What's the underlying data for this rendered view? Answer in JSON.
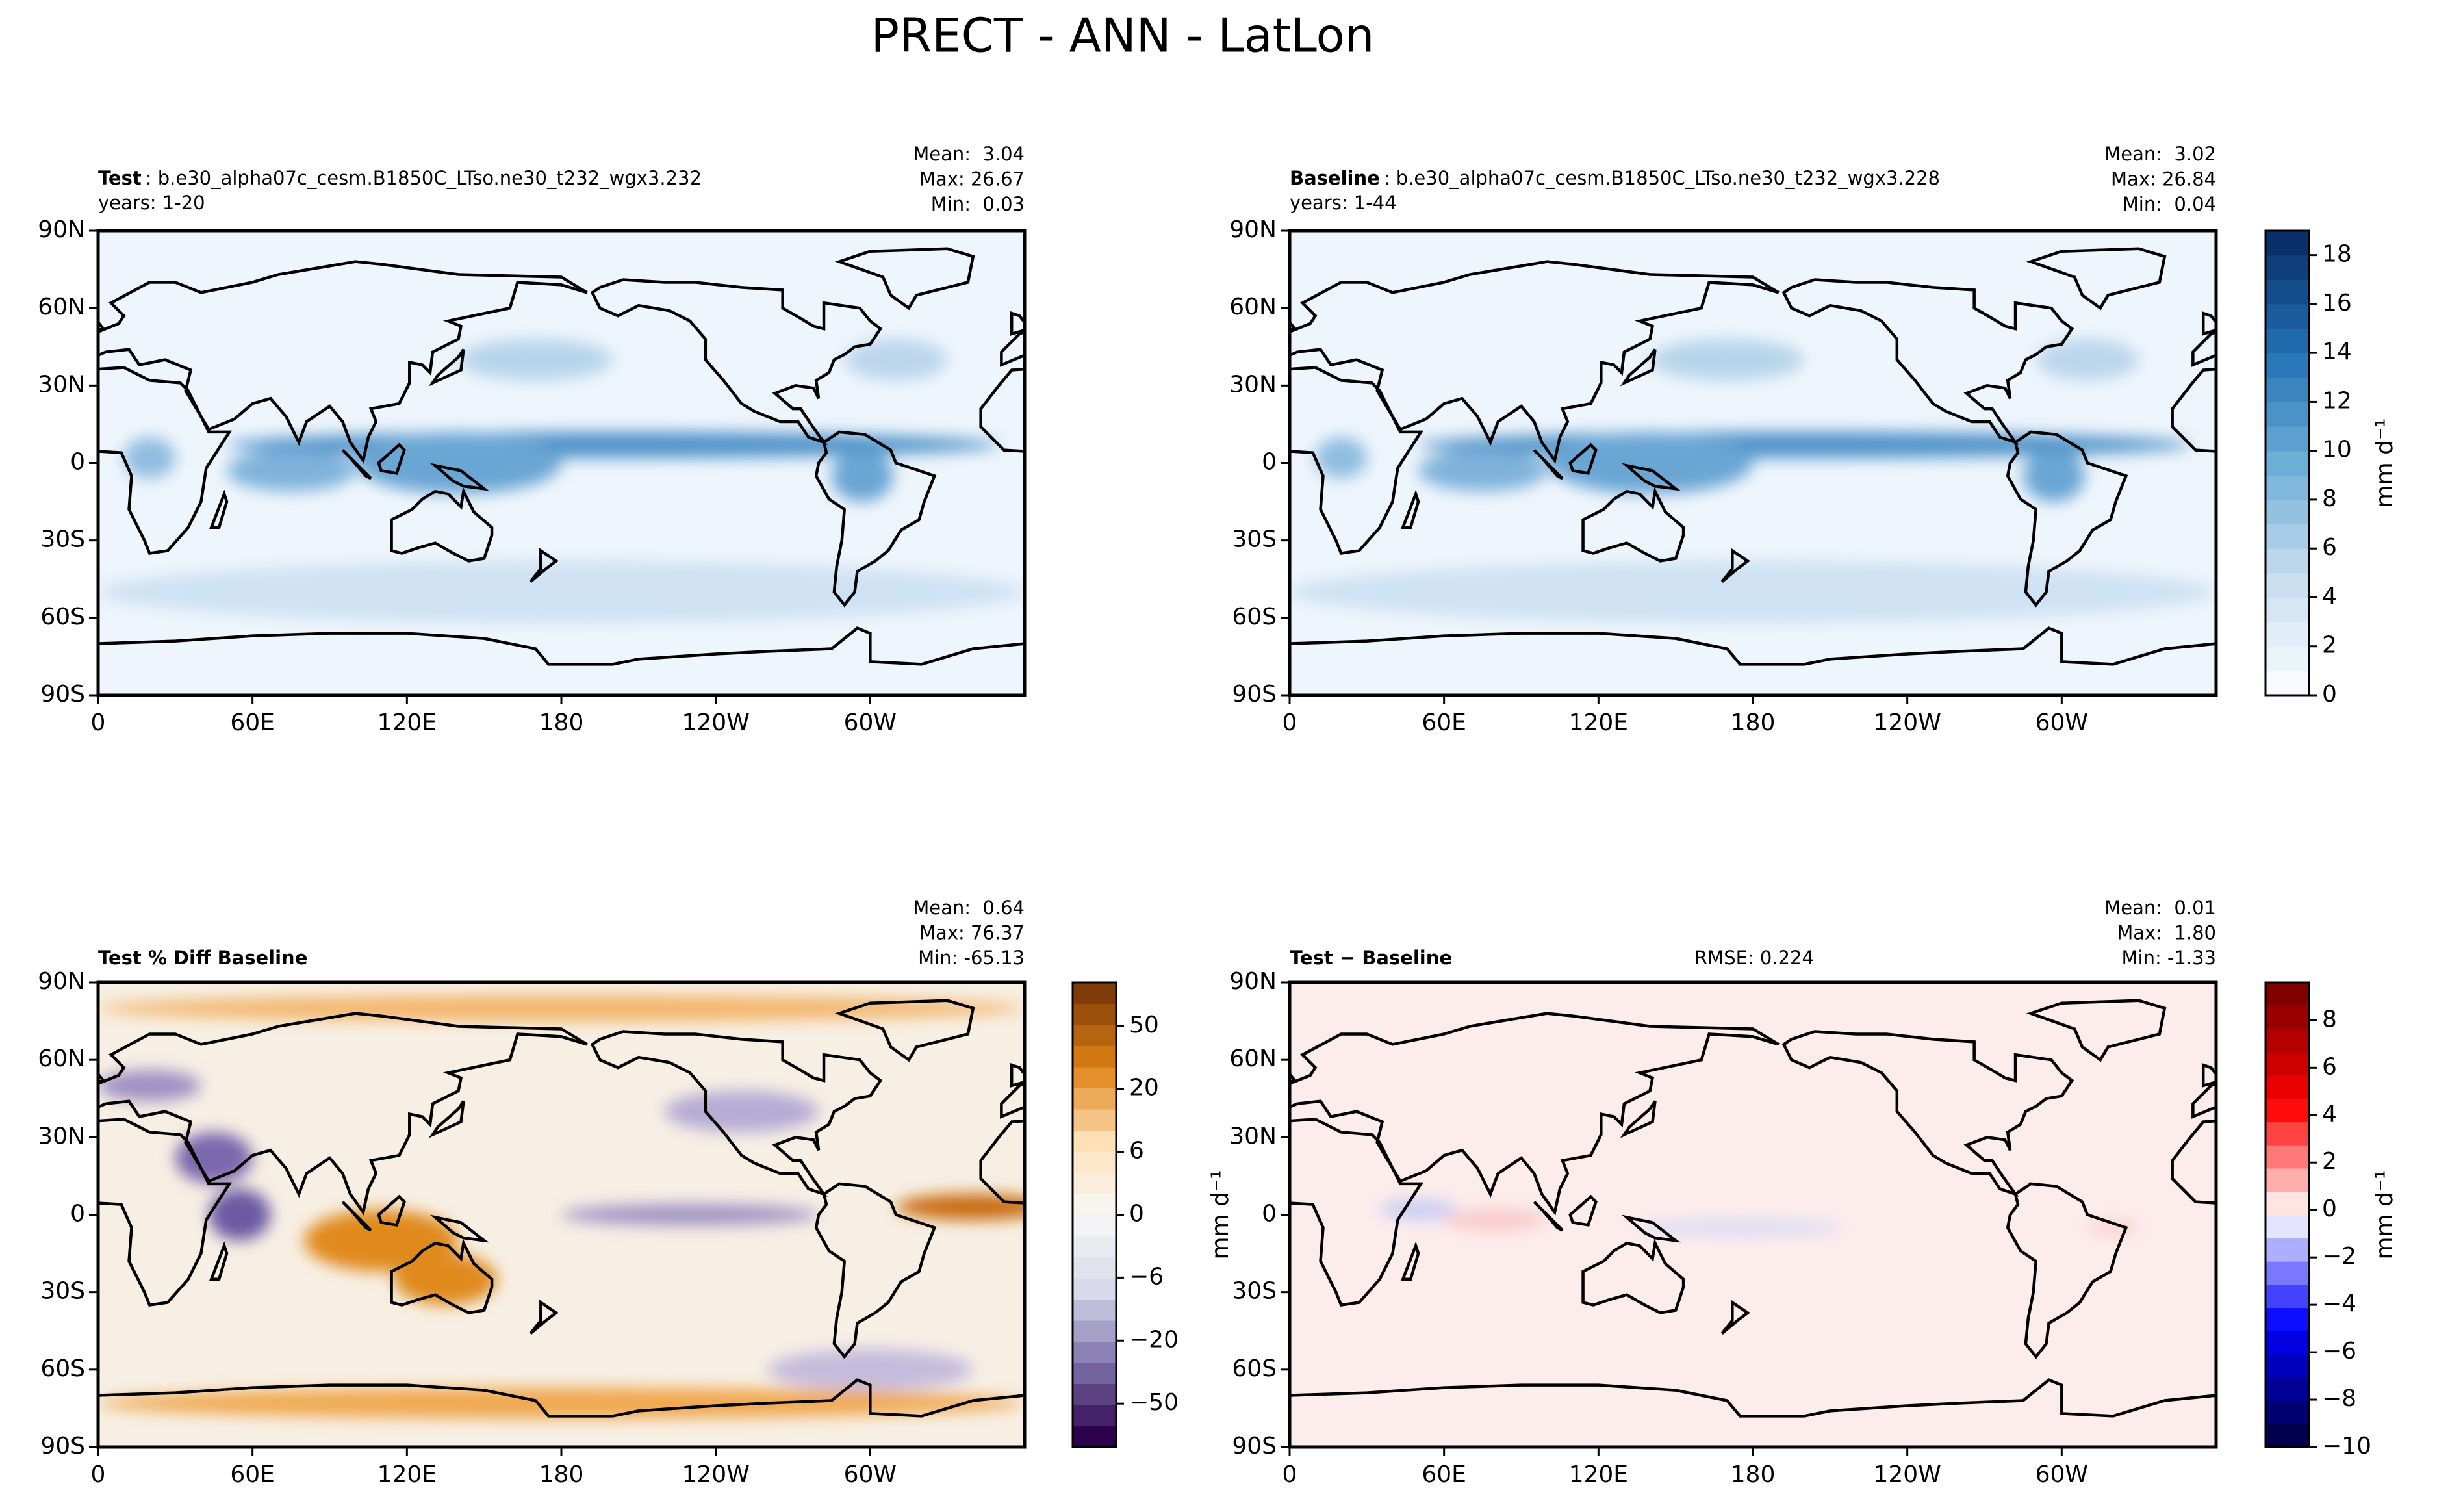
{
  "title": "PRECT - ANN - LatLon",
  "chart_data": [
    {
      "type": "map",
      "title_bold": "Test",
      "title": ": b.e30_alpha07c_cesm.B1850C_LTso.ne30_t232_wgx3.232",
      "subtitle": "years: 1-20",
      "stats": [
        "Mean:  3.04",
        "Max: 26.67",
        "Min:  0.03"
      ],
      "field": "precip",
      "xlim": [
        0,
        360
      ],
      "ylim": [
        -90,
        90
      ],
      "xticks": [
        0,
        {
          "value": 60,
          "label": "60E"
        },
        {
          "value": 120,
          "label": "120E"
        },
        180,
        {
          "value": 240,
          "label": "120W"
        },
        {
          "value": 300,
          "label": "60W"
        }
      ],
      "yticks": [
        {
          "value": 90,
          "label": "90N"
        },
        {
          "value": 60,
          "label": "60N"
        },
        {
          "value": 30,
          "label": "30N"
        },
        0,
        {
          "value": -30,
          "label": "30S"
        },
        {
          "value": -60,
          "label": "60S"
        },
        {
          "value": -90,
          "label": "90S"
        }
      ]
    },
    {
      "type": "map",
      "title_bold": "Baseline",
      "title": ": b.e30_alpha07c_cesm.B1850C_LTso.ne30_t232_wgx3.228",
      "subtitle": "years: 1-44",
      "stats": [
        "Mean:  3.02",
        "Max: 26.84",
        "Min:  0.04"
      ],
      "field": "precip",
      "xlim": [
        0,
        360
      ],
      "ylim": [
        -90,
        90
      ],
      "xticks": [
        0,
        {
          "value": 60,
          "label": "60E"
        },
        {
          "value": 120,
          "label": "120E"
        },
        180,
        {
          "value": 240,
          "label": "120W"
        },
        {
          "value": 300,
          "label": "60W"
        }
      ],
      "yticks": [
        {
          "value": 90,
          "label": "90N"
        },
        {
          "value": 60,
          "label": "60N"
        },
        {
          "value": 30,
          "label": "30N"
        },
        0,
        {
          "value": -30,
          "label": "30S"
        },
        {
          "value": -60,
          "label": "60S"
        },
        {
          "value": -90,
          "label": "90S"
        }
      ],
      "colorbar": {
        "label": "mm d⁻¹",
        "lim": [
          0,
          19
        ],
        "ticks": [
          0,
          2,
          4,
          6,
          8,
          10,
          12,
          14,
          16,
          18
        ],
        "bands": 19,
        "colors": [
          "#f7fbff",
          "#c6dbef",
          "#6baed6",
          "#2171b5",
          "#08306b"
        ]
      }
    },
    {
      "type": "map",
      "title_bold": "Test % Diff Baseline",
      "stats": [
        "Mean:  0.64",
        "Max: 76.37",
        "Min: -65.13"
      ],
      "field": "pctdiff",
      "xlim": [
        0,
        360
      ],
      "ylim": [
        -90,
        90
      ],
      "xticks": [
        0,
        {
          "value": 60,
          "label": "60E"
        },
        {
          "value": 120,
          "label": "120E"
        },
        180,
        {
          "value": 240,
          "label": "120W"
        },
        {
          "value": 300,
          "label": "60W"
        }
      ],
      "yticks": [
        {
          "value": 90,
          "label": "90N"
        },
        {
          "value": 60,
          "label": "60N"
        },
        {
          "value": 30,
          "label": "30N"
        },
        0,
        {
          "value": -30,
          "label": "30S"
        },
        {
          "value": -60,
          "label": "60S"
        },
        {
          "value": -90,
          "label": "90S"
        }
      ],
      "colorbar": {
        "label": "mm d⁻¹",
        "ticks": [
          {
            "value": -50,
            "label": "−50"
          },
          {
            "value": -20,
            "label": "−20"
          },
          {
            "value": -6,
            "label": "−6"
          },
          0,
          6,
          20,
          50
        ],
        "bands": 22,
        "colors": [
          "#2d004b",
          "#8073ac",
          "#d8daeb",
          "#f7f7f7",
          "#fee0b6",
          "#e08214",
          "#7f3b08"
        ]
      }
    },
    {
      "type": "map",
      "title_bold": "Test − Baseline",
      "rmse": "RMSE: 0.224",
      "stats": [
        "Mean:  0.01",
        "Max:  1.80",
        "Min: -1.33"
      ],
      "field": "diff",
      "xlim": [
        0,
        360
      ],
      "ylim": [
        -90,
        90
      ],
      "xticks": [
        0,
        {
          "value": 60,
          "label": "60E"
        },
        {
          "value": 120,
          "label": "120E"
        },
        180,
        {
          "value": 240,
          "label": "120W"
        },
        {
          "value": 300,
          "label": "60W"
        }
      ],
      "yticks": [
        {
          "value": 90,
          "label": "90N"
        },
        {
          "value": 60,
          "label": "60N"
        },
        {
          "value": 30,
          "label": "30N"
        },
        0,
        {
          "value": -30,
          "label": "30S"
        },
        {
          "value": -60,
          "label": "60S"
        },
        {
          "value": -90,
          "label": "90S"
        }
      ],
      "colorbar": {
        "label": "mm d⁻¹",
        "lim": [
          -10,
          9.6
        ],
        "ticks": [
          {
            "value": -10,
            "label": "−10"
          },
          {
            "value": -8,
            "label": "−8"
          },
          {
            "value": -6,
            "label": "−6"
          },
          {
            "value": -4,
            "label": "−4"
          },
          {
            "value": -2,
            "label": "−2"
          },
          0,
          2,
          4,
          6,
          8
        ],
        "bands": 20,
        "colors": [
          "#00004c",
          "#0000ff",
          "#ffffff",
          "#ff0000",
          "#800000"
        ]
      }
    }
  ]
}
